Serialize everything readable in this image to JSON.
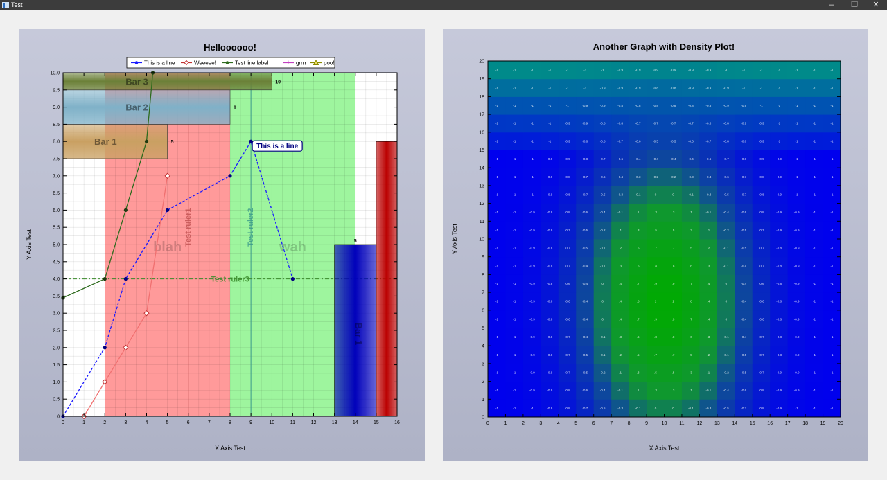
{
  "window": {
    "title": "Test",
    "minimize": "–",
    "maximize": "❐",
    "close": "✕"
  },
  "chart_data": [
    {
      "type": "line",
      "title": "Helloooooo!",
      "xlabel": "X Axis Test",
      "ylabel": "Y Axis Test",
      "xlim": [
        0,
        16
      ],
      "ylim": [
        0,
        10
      ],
      "x_ticks": [
        "0",
        "1",
        "2",
        "3",
        "4",
        "5",
        "6",
        "7",
        "8",
        "9",
        "10",
        "11",
        "12",
        "13",
        "14",
        "15",
        "16"
      ],
      "y_ticks": [
        "0",
        "0.5",
        "1.0",
        "1.5",
        "2.0",
        "2.5",
        "3.0",
        "3.5",
        "4.0",
        "4.5",
        "5.0",
        "5.5",
        "6.0",
        "6.5",
        "7.0",
        "7.5",
        "8.0",
        "8.5",
        "9.0",
        "9.5",
        "10.0"
      ],
      "legend": [
        "This is a line",
        "Weeeee!",
        "Test line label",
        "grrrr",
        "poo!"
      ],
      "legend_position": "top",
      "grid": true,
      "series": [
        {
          "name": "This is a line",
          "color": "#1a1aff",
          "style": "dashed",
          "marker": "circle",
          "x": [
            0,
            2,
            3,
            5,
            8,
            9,
            11
          ],
          "y": [
            0,
            2,
            4,
            6,
            7,
            8,
            4
          ]
        },
        {
          "name": "Weeeee!",
          "color": "#f07070",
          "style": "solid",
          "marker": "diamond",
          "x": [
            1,
            2,
            3,
            4,
            5
          ],
          "y": [
            0,
            1,
            2,
            3,
            7
          ]
        },
        {
          "name": "Test line label",
          "color": "#2e6b1e",
          "style": "solid",
          "marker": "circle",
          "x": [
            0,
            2,
            3,
            4,
            4.3
          ],
          "y": [
            3.45,
            4,
            6,
            8,
            10
          ]
        }
      ],
      "regions": [
        {
          "label": "blah",
          "x": [
            2,
            8
          ],
          "color": "#ff9a9a"
        },
        {
          "label": "wah",
          "x": [
            8,
            14
          ],
          "color": "#9ef59e"
        }
      ],
      "rulers": [
        {
          "label": "Test ruler1",
          "orientation": "vertical",
          "value": 6,
          "color": "#c05050"
        },
        {
          "label": "Test ruler2",
          "orientation": "vertical",
          "value": 9,
          "color": "#3a9a8a"
        },
        {
          "label": "Test ruler3",
          "orientation": "horizontal",
          "value": 4,
          "color": "#3a8a2a"
        }
      ],
      "horizontal_bars": [
        {
          "label": "Bar 1",
          "start": 0,
          "end": 5,
          "ymin": 7.5,
          "ymax": 8.5,
          "value_label": "5",
          "color": "#c9a062"
        },
        {
          "label": "Bar 2",
          "start": 0,
          "end": 8,
          "ymin": 8.5,
          "ymax": 9.5,
          "value_label": "8",
          "color": "#7fb1c8"
        },
        {
          "label": "Bar 3",
          "start": 0,
          "end": 10,
          "ymin": 9.5,
          "ymax": 10.0,
          "value_label": "10",
          "color": "#6b8038"
        }
      ],
      "vertical_bars": [
        {
          "label": "Bar 1",
          "start": 13,
          "end": 15,
          "value": 5,
          "value_label": "5",
          "color": "#0000bb"
        },
        {
          "label": "",
          "start": 15,
          "end": 16,
          "value": 8,
          "color": "#bb0000"
        }
      ],
      "callout": {
        "text": "This is a line",
        "x": 9,
        "y": 8
      }
    },
    {
      "type": "heatmap",
      "title": "Another Graph with Density Plot!",
      "xlabel": "X Axis Test",
      "ylabel": "Y Axis Test",
      "xlim": [
        0,
        20
      ],
      "ylim": [
        0,
        20
      ],
      "x_ticks": [
        "0",
        "1",
        "2",
        "3",
        "4",
        "5",
        "6",
        "7",
        "8",
        "9",
        "10",
        "11",
        "12",
        "13",
        "14",
        "15",
        "16",
        "17",
        "18",
        "19",
        "20"
      ],
      "y_ticks": [
        "0",
        "1",
        "2",
        "3",
        "4",
        "5",
        "6",
        "7",
        "8",
        "9",
        "10",
        "11",
        "12",
        "13",
        "14",
        "15",
        "16",
        "17",
        "18",
        "19",
        "20"
      ],
      "color_scale": [
        "#00aa00",
        "#1a8a50",
        "#0000ee",
        "#008a8a"
      ],
      "value_range": [
        -1,
        1
      ]
    }
  ]
}
